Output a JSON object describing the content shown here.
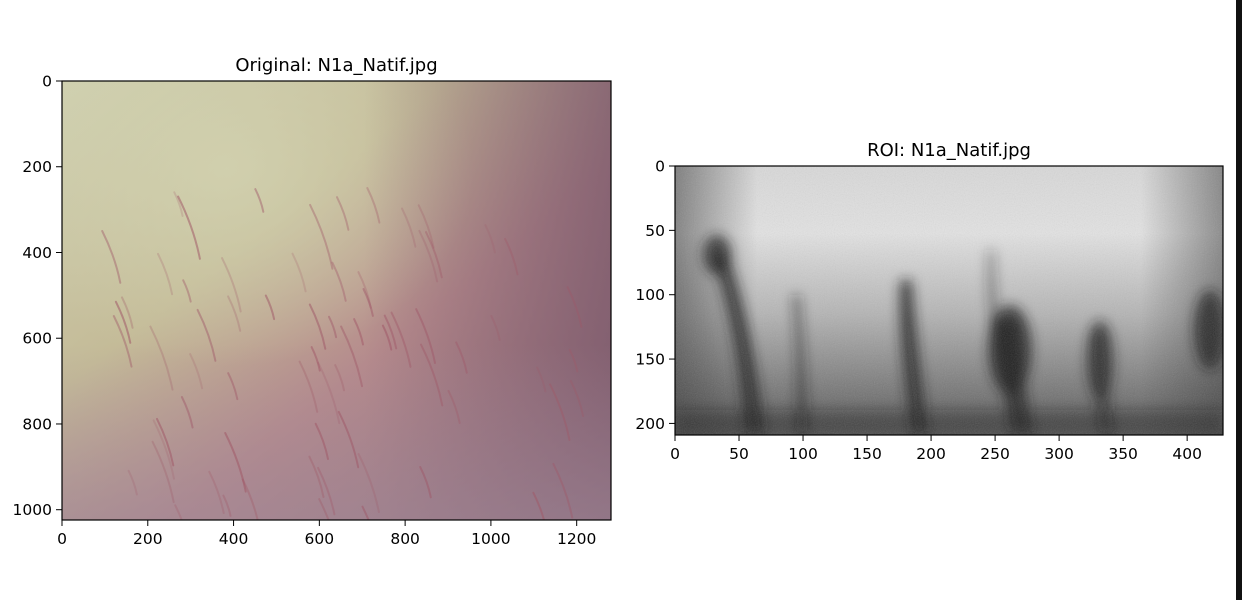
{
  "chart_data": [
    {
      "type": "image",
      "title": "Original: N1a_Natif.jpg",
      "x_ticks": [
        0,
        200,
        400,
        600,
        800,
        1000,
        1200
      ],
      "y_ticks": [
        0,
        200,
        400,
        600,
        800,
        1000
      ],
      "xlim": [
        0,
        1280
      ],
      "ylim": [
        1024,
        0
      ],
      "grid": false,
      "colors": {
        "top_left": "#c8c9a8",
        "mid": "#b8858a",
        "right": "#7f5a6d",
        "bottom_left": "#a08898"
      }
    },
    {
      "type": "image",
      "title": "ROI: N1a_Natif.jpg",
      "x_ticks": [
        0,
        50,
        100,
        150,
        200,
        250,
        300,
        350,
        400
      ],
      "y_ticks": [
        0,
        50,
        100,
        150,
        200
      ],
      "xlim": [
        0,
        428
      ],
      "ylim": [
        209,
        0
      ],
      "grid": false,
      "colormap": "gray"
    }
  ]
}
